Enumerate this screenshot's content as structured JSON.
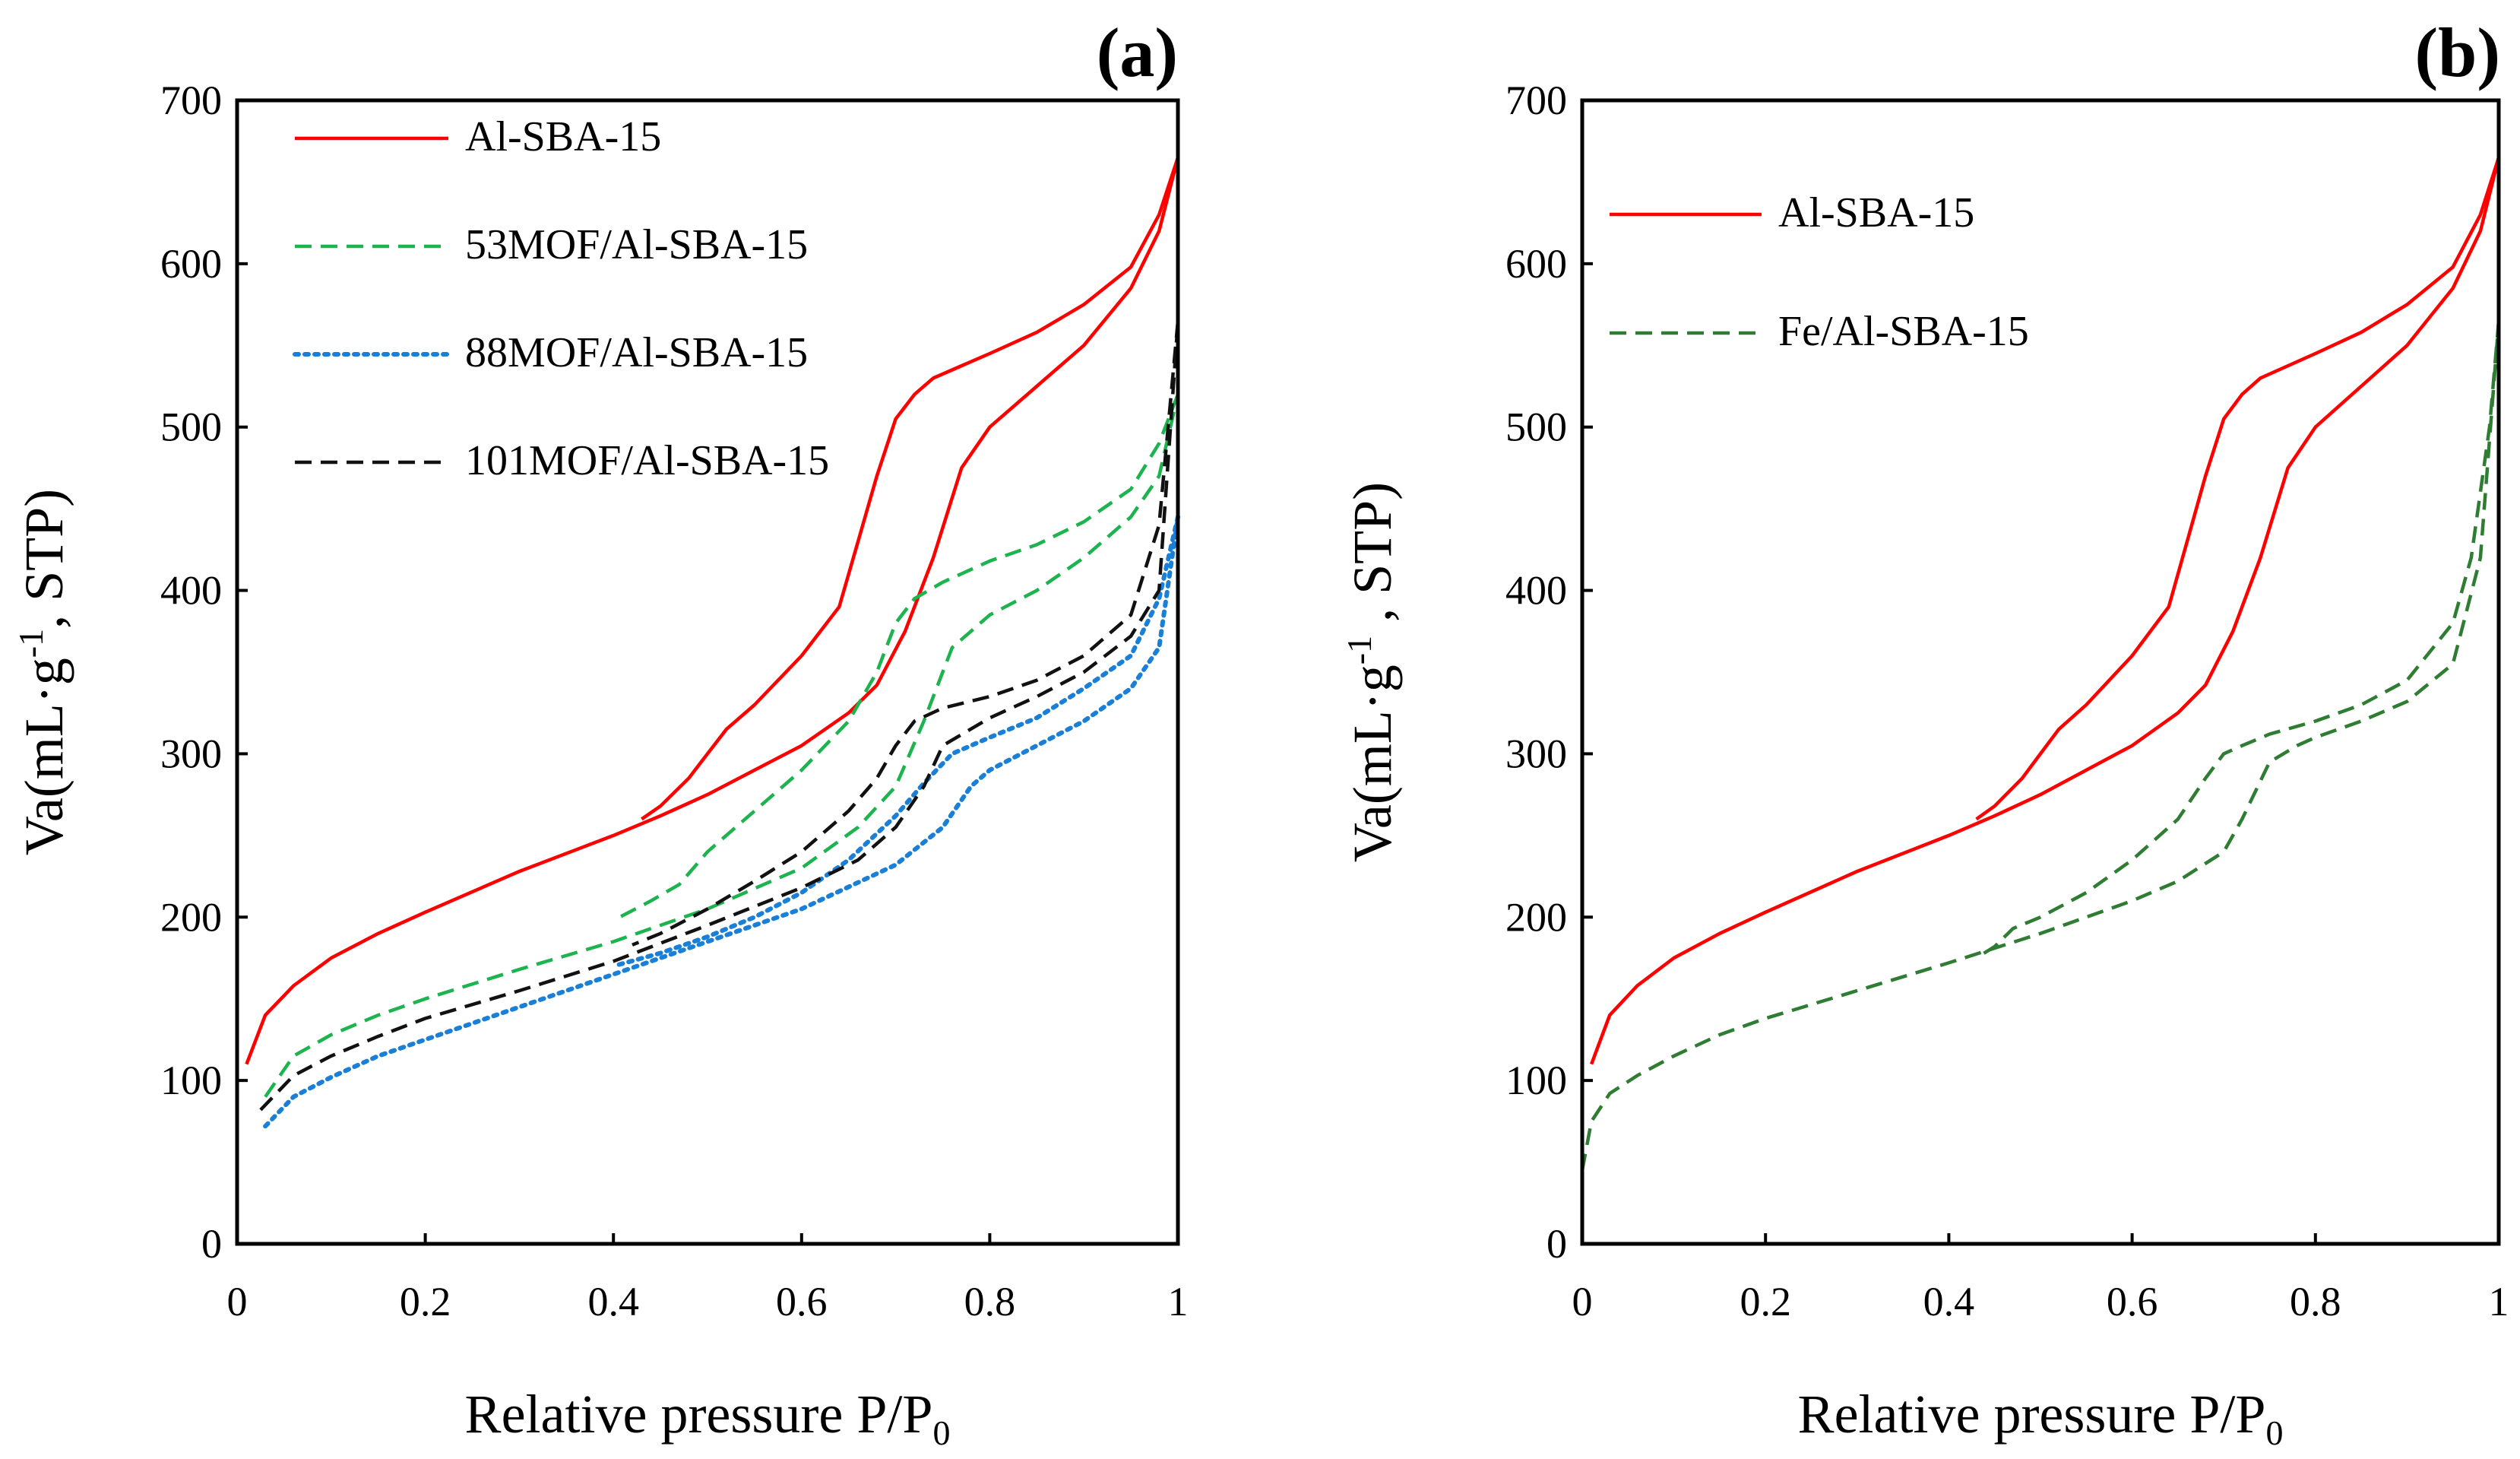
{
  "colors": {
    "red": "#ff0000",
    "green": "#1db34f",
    "blue": "#1a7fd6",
    "black": "#111111",
    "darkgreen": "#2e7d32"
  },
  "chart_data": [
    {
      "type": "line",
      "panel_label": "(a)",
      "xlabel_main": "Relative pressure P/P",
      "xlabel_sub": "0",
      "ylabel_pre": "Va(mL·g",
      "ylabel_sup": "-1",
      "ylabel_post": ", STP)",
      "xlim": [
        0,
        1
      ],
      "ylim": [
        0,
        700
      ],
      "xticks": [
        0,
        0.2,
        0.4,
        0.6,
        0.8,
        1
      ],
      "xtick_labels": [
        "0",
        "0.2",
        "0.4",
        "0.6",
        "0.8",
        "1"
      ],
      "yticks": [
        0,
        100,
        200,
        300,
        400,
        500,
        600,
        700
      ],
      "ytick_labels": [
        "0",
        "100",
        "200",
        "300",
        "400",
        "500",
        "600",
        "700"
      ],
      "legend_position": "top-left",
      "series": [
        {
          "name": "Al-SBA-15",
          "style": "solid",
          "color_key": "red",
          "adsorption": {
            "x": [
              0.01,
              0.03,
              0.06,
              0.1,
              0.15,
              0.2,
              0.3,
              0.4,
              0.45,
              0.5,
              0.55,
              0.6,
              0.65,
              0.68,
              0.71,
              0.74,
              0.77,
              0.8,
              0.85,
              0.9,
              0.95,
              0.98,
              1.0
            ],
            "y": [
              110,
              140,
              158,
              175,
              190,
              203,
              228,
              250,
              262,
              275,
              290,
              305,
              325,
              342,
              375,
              420,
              475,
              500,
              525,
              550,
              585,
              620,
              665
            ]
          },
          "desorption": {
            "x": [
              1.0,
              0.98,
              0.95,
              0.9,
              0.85,
              0.8,
              0.76,
              0.74,
              0.72,
              0.7,
              0.68,
              0.66,
              0.64,
              0.6,
              0.55,
              0.52,
              0.5,
              0.48,
              0.45,
              0.43
            ],
            "y": [
              665,
              630,
              598,
              575,
              558,
              545,
              535,
              530,
              520,
              505,
              470,
              430,
              390,
              360,
              330,
              315,
              300,
              285,
              268,
              260
            ]
          }
        },
        {
          "name": "53MOF/Al-SBA-15",
          "style": "dashed",
          "color_key": "green",
          "adsorption": {
            "x": [
              0.03,
              0.06,
              0.1,
              0.15,
              0.2,
              0.3,
              0.4,
              0.5,
              0.6,
              0.66,
              0.7,
              0.73,
              0.76,
              0.8,
              0.85,
              0.9,
              0.95,
              0.98,
              1.0
            ],
            "y": [
              90,
              115,
              128,
              140,
              150,
              168,
              185,
              205,
              230,
              255,
              280,
              320,
              365,
              385,
              400,
              420,
              445,
              470,
              520
            ]
          },
          "desorption": {
            "x": [
              1.0,
              0.98,
              0.95,
              0.9,
              0.85,
              0.8,
              0.75,
              0.72,
              0.7,
              0.68,
              0.65,
              0.6,
              0.55,
              0.5,
              0.47,
              0.44,
              0.4
            ],
            "y": [
              520,
              490,
              462,
              442,
              428,
              418,
              405,
              395,
              380,
              350,
              320,
              290,
              265,
              240,
              220,
              210,
              198
            ]
          }
        },
        {
          "name": "88MOF/Al-SBA-15",
          "style": "dotted",
          "color_key": "blue",
          "adsorption": {
            "x": [
              0.03,
              0.06,
              0.1,
              0.15,
              0.2,
              0.3,
              0.4,
              0.5,
              0.6,
              0.7,
              0.75,
              0.78,
              0.8,
              0.85,
              0.9,
              0.95,
              0.98,
              1.0
            ],
            "y": [
              72,
              90,
              102,
              115,
              125,
              145,
              165,
              185,
              205,
              232,
              255,
              280,
              290,
              305,
              320,
              340,
              365,
              445
            ]
          },
          "desorption": {
            "x": [
              1.0,
              0.98,
              0.95,
              0.9,
              0.85,
              0.8,
              0.76,
              0.73,
              0.7,
              0.65,
              0.6,
              0.55,
              0.5,
              0.45,
              0.4
            ],
            "y": [
              445,
              395,
              360,
              340,
              322,
              310,
              300,
              282,
              262,
              235,
              215,
              200,
              188,
              178,
              170
            ]
          }
        },
        {
          "name": "101MOF/Al-SBA-15",
          "style": "dashed",
          "color_key": "black",
          "adsorption": {
            "x": [
              0.025,
              0.06,
              0.1,
              0.15,
              0.2,
              0.3,
              0.4,
              0.5,
              0.6,
              0.66,
              0.7,
              0.73,
              0.75,
              0.8,
              0.85,
              0.9,
              0.95,
              0.98,
              1.0
            ],
            "y": [
              82,
              103,
              115,
              127,
              138,
              155,
              173,
              195,
              218,
              235,
              255,
              280,
              305,
              322,
              335,
              350,
              372,
              400,
              565
            ]
          },
          "desorption": {
            "x": [
              1.0,
              0.98,
              0.95,
              0.9,
              0.85,
              0.8,
              0.75,
              0.72,
              0.7,
              0.68,
              0.65,
              0.6,
              0.55,
              0.5,
              0.45,
              0.42
            ],
            "y": [
              565,
              440,
              385,
              360,
              345,
              335,
              328,
              320,
              305,
              285,
              265,
              240,
              222,
              205,
              190,
              183
            ]
          }
        }
      ]
    },
    {
      "type": "line",
      "panel_label": "(b)",
      "xlabel_main": "Relative pressure P/P",
      "xlabel_sub": "0",
      "ylabel_pre": "Va(mL·g",
      "ylabel_sup": "-1",
      "ylabel_post": " , STP)",
      "xlim": [
        0,
        1
      ],
      "ylim": [
        0,
        700
      ],
      "xticks": [
        0,
        0.2,
        0.4,
        0.6,
        0.8,
        1
      ],
      "xtick_labels": [
        "0",
        "0.2",
        "0.4",
        "0.6",
        "0.8",
        "1"
      ],
      "yticks": [
        0,
        100,
        200,
        300,
        400,
        500,
        600,
        700
      ],
      "ytick_labels": [
        "0",
        "100",
        "200",
        "300",
        "400",
        "500",
        "600",
        "700"
      ],
      "legend_position": "top-left",
      "series": [
        {
          "name": "Al-SBA-15",
          "style": "solid",
          "color_key": "red",
          "adsorption": {
            "x": [
              0.01,
              0.03,
              0.06,
              0.1,
              0.15,
              0.2,
              0.3,
              0.4,
              0.45,
              0.5,
              0.55,
              0.6,
              0.65,
              0.68,
              0.71,
              0.74,
              0.77,
              0.8,
              0.85,
              0.9,
              0.95,
              0.98,
              1.0
            ],
            "y": [
              110,
              140,
              158,
              175,
              190,
              203,
              228,
              250,
              262,
              275,
              290,
              305,
              325,
              342,
              375,
              420,
              475,
              500,
              525,
              550,
              585,
              620,
              665
            ]
          },
          "desorption": {
            "x": [
              1.0,
              0.98,
              0.95,
              0.9,
              0.85,
              0.8,
              0.76,
              0.74,
              0.72,
              0.7,
              0.68,
              0.66,
              0.64,
              0.6,
              0.55,
              0.52,
              0.5,
              0.48,
              0.45,
              0.43
            ],
            "y": [
              665,
              630,
              598,
              575,
              558,
              545,
              535,
              530,
              520,
              505,
              470,
              430,
              390,
              360,
              330,
              315,
              300,
              285,
              268,
              260
            ]
          }
        },
        {
          "name": "Fe/Al-SBA-15",
          "style": "dashed",
          "color_key": "darkgreen",
          "adsorption": {
            "x": [
              0.0,
              0.01,
              0.03,
              0.06,
              0.1,
              0.15,
              0.2,
              0.3,
              0.4,
              0.5,
              0.6,
              0.65,
              0.7,
              0.72,
              0.75,
              0.78,
              0.8,
              0.85,
              0.9,
              0.95,
              0.98,
              1.0
            ],
            "y": [
              45,
              75,
              92,
              103,
              115,
              128,
              138,
              155,
              172,
              190,
              210,
              222,
              240,
              260,
              295,
              305,
              310,
              320,
              332,
              355,
              420,
              565
            ]
          },
          "desorption": {
            "x": [
              1.0,
              0.99,
              0.97,
              0.95,
              0.9,
              0.85,
              0.8,
              0.75,
              0.72,
              0.7,
              0.68,
              0.65,
              0.6,
              0.55,
              0.5,
              0.47,
              0.45,
              0.43
            ],
            "y": [
              565,
              500,
              420,
              380,
              345,
              330,
              320,
              312,
              305,
              300,
              285,
              260,
              235,
              215,
              200,
              193,
              182,
              175
            ]
          }
        }
      ]
    }
  ]
}
